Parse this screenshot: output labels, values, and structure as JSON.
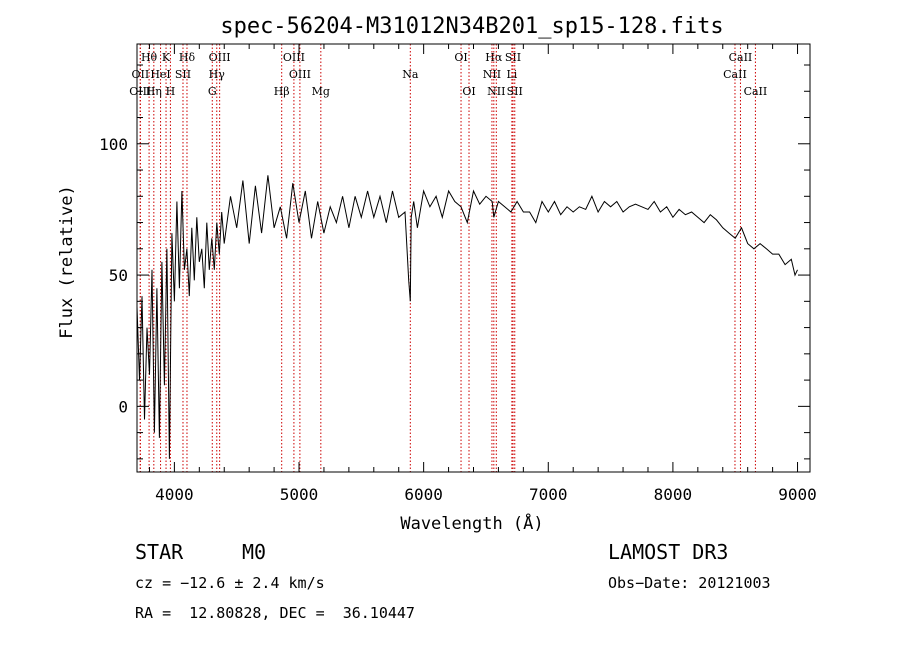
{
  "chart_data": {
    "type": "line",
    "title": "spec-56204-M31012N34B201_sp15-128.fits",
    "xlabel": "Wavelength (Å)",
    "ylabel": "Flux (relative)",
    "xlim": [
      3700,
      9100
    ],
    "ylim": [
      -25,
      138
    ],
    "x_ticks": [
      4000,
      5000,
      6000,
      7000,
      8000,
      9000
    ],
    "y_ticks": [
      0,
      50,
      100
    ],
    "grid": false,
    "series": [
      {
        "x": [
          3700,
          3720,
          3740,
          3760,
          3780,
          3800,
          3820,
          3840,
          3860,
          3880,
          3900,
          3920,
          3940,
          3960,
          3980,
          4000,
          4020,
          4040,
          4060,
          4080,
          4100,
          4120,
          4140,
          4160,
          4180,
          4200,
          4220,
          4240,
          4260,
          4280,
          4300,
          4320,
          4340,
          4360,
          4380,
          4400,
          4450,
          4500,
          4550,
          4600,
          4650,
          4700,
          4750,
          4800,
          4850,
          4900,
          4950,
          5000,
          5050,
          5100,
          5150,
          5200,
          5250,
          5300,
          5350,
          5400,
          5450,
          5500,
          5550,
          5600,
          5650,
          5700,
          5750,
          5800,
          5850,
          5880,
          5893,
          5900,
          5920,
          5950,
          6000,
          6050,
          6100,
          6150,
          6200,
          6250,
          6300,
          6350,
          6400,
          6450,
          6500,
          6550,
          6563,
          6600,
          6650,
          6700,
          6750,
          6800,
          6850,
          6900,
          6950,
          7000,
          7050,
          7100,
          7150,
          7200,
          7250,
          7300,
          7350,
          7400,
          7450,
          7500,
          7550,
          7600,
          7650,
          7700,
          7750,
          7800,
          7850,
          7900,
          7950,
          8000,
          8050,
          8100,
          8150,
          8200,
          8250,
          8300,
          8350,
          8400,
          8450,
          8500,
          8550,
          8600,
          8650,
          8700,
          8750,
          8800,
          8850,
          8900,
          8950,
          8980,
          9000
        ],
        "y": [
          38,
          10,
          42,
          -5,
          30,
          12,
          52,
          -10,
          45,
          -12,
          55,
          8,
          60,
          -20,
          66,
          40,
          78,
          45,
          82,
          52,
          60,
          42,
          68,
          48,
          72,
          55,
          60,
          45,
          70,
          52,
          64,
          52,
          70,
          58,
          74,
          62,
          80,
          68,
          86,
          62,
          84,
          66,
          88,
          68,
          76,
          64,
          85,
          70,
          82,
          64,
          78,
          66,
          76,
          70,
          80,
          68,
          80,
          72,
          82,
          72,
          80,
          70,
          82,
          72,
          74,
          48,
          40,
          72,
          78,
          68,
          82,
          76,
          80,
          72,
          82,
          78,
          76,
          70,
          82,
          77,
          80,
          78,
          72,
          78,
          76,
          74,
          78,
          74,
          74,
          70,
          78,
          74,
          78,
          73,
          76,
          74,
          76,
          75,
          80,
          74,
          78,
          76,
          78,
          74,
          76,
          77,
          76,
          75,
          78,
          74,
          76,
          72,
          75,
          73,
          74,
          72,
          70,
          73,
          71,
          68,
          66,
          64,
          68,
          62,
          60,
          62,
          60,
          58,
          58,
          54,
          56,
          50,
          52
        ]
      }
    ],
    "lines": [
      {
        "label": "Hθ",
        "x": 3797,
        "row": 1
      },
      {
        "label": "OII",
        "x": 3727,
        "row": 2
      },
      {
        "label": "OIII",
        "x": 3726,
        "row": 3
      },
      {
        "label": "K",
        "x": 3933,
        "row": 1
      },
      {
        "label": "HeI",
        "x": 3889,
        "row": 2
      },
      {
        "label": "Hη",
        "x": 3835,
        "row": 3
      },
      {
        "label": "SII",
        "x": 4069,
        "row": 2
      },
      {
        "label": "H",
        "x": 3968,
        "row": 3
      },
      {
        "label": "Hδ",
        "x": 4101,
        "row": 1
      },
      {
        "label": "OIII",
        "x": 4363,
        "row": 1
      },
      {
        "label": "Hγ",
        "x": 4340,
        "row": 2
      },
      {
        "label": "G",
        "x": 4304,
        "row": 3
      },
      {
        "label": "OIII",
        "x": 4959,
        "row": 1
      },
      {
        "label": "OIII",
        "x": 5007,
        "row": 2
      },
      {
        "label": "Hβ",
        "x": 4861,
        "row": 3
      },
      {
        "label": "Mg",
        "x": 5175,
        "row": 3
      },
      {
        "label": "Na",
        "x": 5893,
        "row": 2
      },
      {
        "label": "OI",
        "x": 6300,
        "row": 1
      },
      {
        "label": "OI",
        "x": 6364,
        "row": 3
      },
      {
        "label": "Hα",
        "x": 6563,
        "row": 1
      },
      {
        "label": "SII",
        "x": 6717,
        "row": 1
      },
      {
        "label": "NII",
        "x": 6548,
        "row": 2
      },
      {
        "label": "Li",
        "x": 6708,
        "row": 2
      },
      {
        "label": "NII",
        "x": 6583,
        "row": 3
      },
      {
        "label": "SII",
        "x": 6731,
        "row": 3
      },
      {
        "label": "CaII",
        "x": 8542,
        "row": 1
      },
      {
        "label": "CaII",
        "x": 8498,
        "row": 2
      },
      {
        "label": "CaII",
        "x": 8662,
        "row": 3
      }
    ],
    "colors": {
      "spectrum": "#000000",
      "line_markers": "#cc0000"
    }
  },
  "info": {
    "class": "STAR",
    "subclass": "M0",
    "cz": "cz = −12.6 ± 2.4 km/s",
    "coords": "RA =  12.80828, DEC =  36.10447",
    "survey": "LAMOST DR3",
    "obs_date": "Obs−Date: 20121003"
  }
}
